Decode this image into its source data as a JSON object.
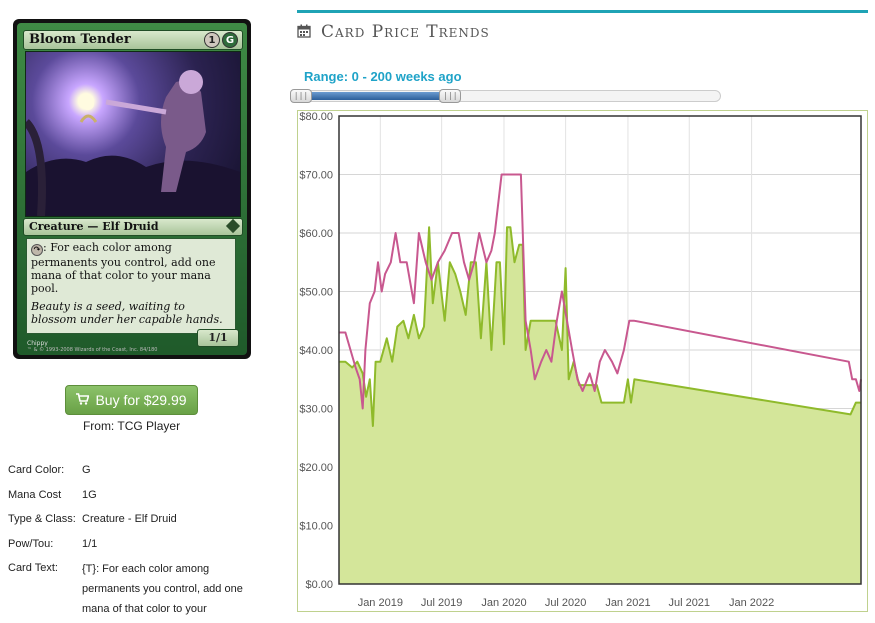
{
  "card": {
    "name": "Bloom Tender",
    "type_line": "Creature — Elf Druid",
    "rules_text": ": For each color among permanents you control, add one mana of that color to your mana pool.",
    "flavor_text": "Beauty is a seed, waiting to blossom under her capable hands.",
    "pt": "1/1",
    "artist": "Chippy",
    "copyright": "™ & © 1993-2008 Wizards of the Coast, Inc. 84/180",
    "cost_generic": "1",
    "cost_colored": "G",
    "accent": "#2f6b3b"
  },
  "buy": {
    "icon": "cart-icon",
    "label": "Buy for $29.99",
    "source": "From: TCG Player",
    "color": "#6fa84b"
  },
  "details": [
    {
      "label": "Card Color:",
      "value": "G"
    },
    {
      "label": "Mana Cost",
      "value": "1G"
    },
    {
      "label": "Type & Class:",
      "value": "Creature - Elf Druid"
    },
    {
      "label": "Pow/Tou:",
      "value": "1/1"
    },
    {
      "label": "Card Text:",
      "value": "{T}: For each color among permanents you control, add one mana of that color to your"
    }
  ],
  "trends": {
    "title": "Card Price Trends",
    "icon": "calendar-icon",
    "range_label": "Range: 0 - 200 weeks ago",
    "range_fraction": [
      0.0,
      0.37
    ],
    "accent": "#1fa3b5"
  },
  "chart_data": {
    "type": "area",
    "ylim": [
      0,
      80
    ],
    "y_ticks": [
      "$0.00",
      "$10.00",
      "$20.00",
      "$30.00",
      "$40.00",
      "$50.00",
      "$60.00",
      "$70.00",
      "$80.00"
    ],
    "xlim": [
      "2018-09-01",
      "2022-11-20"
    ],
    "x_ticks": [
      {
        "date": "2019-01-01",
        "label": "Jan 2019"
      },
      {
        "date": "2019-07-01",
        "label": "Jul 2019"
      },
      {
        "date": "2020-01-01",
        "label": "Jan 2020"
      },
      {
        "date": "2020-07-01",
        "label": "Jul 2020"
      },
      {
        "date": "2021-01-01",
        "label": "Jan 2021"
      },
      {
        "date": "2021-07-01",
        "label": "Jul 2021"
      },
      {
        "date": "2022-01-01",
        "label": "Jan 2022"
      }
    ],
    "grid": true,
    "series": [
      {
        "color": "#c8588f",
        "style": "line",
        "points": [
          [
            "2018-09-01",
            43
          ],
          [
            "2018-09-20",
            43
          ],
          [
            "2018-10-05",
            40
          ],
          [
            "2018-10-20",
            37
          ],
          [
            "2018-11-01",
            35
          ],
          [
            "2018-11-10",
            30
          ],
          [
            "2018-11-18",
            40
          ],
          [
            "2018-12-01",
            48
          ],
          [
            "2018-12-15",
            50
          ],
          [
            "2018-12-25",
            55
          ],
          [
            "2019-01-05",
            50
          ],
          [
            "2019-01-15",
            53
          ],
          [
            "2019-02-01",
            55
          ],
          [
            "2019-02-15",
            60
          ],
          [
            "2019-03-01",
            55
          ],
          [
            "2019-03-20",
            55
          ],
          [
            "2019-04-10",
            48
          ],
          [
            "2019-04-25",
            60
          ],
          [
            "2019-05-15",
            55
          ],
          [
            "2019-06-01",
            52
          ],
          [
            "2019-06-20",
            55
          ],
          [
            "2019-07-10",
            57
          ],
          [
            "2019-08-01",
            60
          ],
          [
            "2019-08-20",
            60
          ],
          [
            "2019-09-05",
            55
          ],
          [
            "2019-09-20",
            52
          ],
          [
            "2019-10-05",
            55
          ],
          [
            "2019-10-20",
            60
          ],
          [
            "2019-11-10",
            55
          ],
          [
            "2019-11-25",
            57
          ],
          [
            "2019-12-05",
            60
          ],
          [
            "2019-12-25",
            70
          ],
          [
            "2020-01-10",
            70
          ],
          [
            "2020-02-01",
            70
          ],
          [
            "2020-02-20",
            70
          ],
          [
            "2020-03-05",
            45
          ],
          [
            "2020-03-20",
            40
          ],
          [
            "2020-04-01",
            35
          ],
          [
            "2020-04-20",
            38
          ],
          [
            "2020-05-05",
            40
          ],
          [
            "2020-05-20",
            38
          ],
          [
            "2020-06-05",
            45
          ],
          [
            "2020-06-20",
            50
          ],
          [
            "2020-07-05",
            45
          ],
          [
            "2020-07-20",
            40
          ],
          [
            "2020-08-05",
            35
          ],
          [
            "2020-08-20",
            33
          ],
          [
            "2020-09-10",
            36
          ],
          [
            "2020-09-25",
            33
          ],
          [
            "2020-10-10",
            38
          ],
          [
            "2020-10-25",
            40
          ],
          [
            "2020-11-15",
            38
          ],
          [
            "2020-12-01",
            36
          ],
          [
            "2020-12-20",
            40
          ],
          [
            "2021-01-05",
            45
          ],
          [
            "2021-01-20",
            45
          ],
          [
            "2022-10-15",
            38
          ],
          [
            "2022-10-25",
            35
          ],
          [
            "2022-11-05",
            35
          ],
          [
            "2022-11-15",
            33
          ],
          [
            "2022-11-20",
            35
          ]
        ]
      },
      {
        "color": "#8fba2b",
        "fill": "#d4e69a",
        "style": "area",
        "points": [
          [
            "2018-09-01",
            38
          ],
          [
            "2018-09-20",
            38
          ],
          [
            "2018-10-10",
            37
          ],
          [
            "2018-10-25",
            38
          ],
          [
            "2018-11-10",
            36
          ],
          [
            "2018-11-20",
            32
          ],
          [
            "2018-12-01",
            35
          ],
          [
            "2018-12-10",
            27
          ],
          [
            "2018-12-18",
            38
          ],
          [
            "2019-01-01",
            38
          ],
          [
            "2019-01-20",
            42
          ],
          [
            "2019-02-05",
            38
          ],
          [
            "2019-02-20",
            44
          ],
          [
            "2019-03-10",
            45
          ],
          [
            "2019-03-25",
            42
          ],
          [
            "2019-04-10",
            46
          ],
          [
            "2019-04-25",
            42
          ],
          [
            "2019-05-10",
            44
          ],
          [
            "2019-05-25",
            61
          ],
          [
            "2019-06-05",
            48
          ],
          [
            "2019-06-20",
            55
          ],
          [
            "2019-07-10",
            45
          ],
          [
            "2019-07-25",
            55
          ],
          [
            "2019-08-10",
            53
          ],
          [
            "2019-08-25",
            50
          ],
          [
            "2019-09-10",
            46
          ],
          [
            "2019-09-25",
            55
          ],
          [
            "2019-10-10",
            55
          ],
          [
            "2019-10-25",
            42
          ],
          [
            "2019-11-10",
            55
          ],
          [
            "2019-11-25",
            40
          ],
          [
            "2019-12-10",
            55
          ],
          [
            "2019-12-20",
            55
          ],
          [
            "2020-01-01",
            41
          ],
          [
            "2020-01-10",
            61
          ],
          [
            "2020-01-20",
            61
          ],
          [
            "2020-02-01",
            55
          ],
          [
            "2020-02-15",
            58
          ],
          [
            "2020-02-25",
            58
          ],
          [
            "2020-03-05",
            40
          ],
          [
            "2020-03-20",
            45
          ],
          [
            "2020-04-10",
            45
          ],
          [
            "2020-05-01",
            45
          ],
          [
            "2020-06-01",
            45
          ],
          [
            "2020-06-20",
            40
          ],
          [
            "2020-07-01",
            54
          ],
          [
            "2020-07-10",
            35
          ],
          [
            "2020-07-25",
            38
          ],
          [
            "2020-08-10",
            34
          ],
          [
            "2020-09-01",
            34
          ],
          [
            "2020-10-01",
            34
          ],
          [
            "2020-10-15",
            31
          ],
          [
            "2020-11-15",
            31
          ],
          [
            "2020-12-20",
            31
          ],
          [
            "2021-01-01",
            35
          ],
          [
            "2021-01-10",
            31
          ],
          [
            "2021-01-20",
            35
          ],
          [
            "2022-10-20",
            29
          ],
          [
            "2022-11-05",
            31
          ],
          [
            "2022-11-20",
            31
          ]
        ]
      }
    ]
  }
}
